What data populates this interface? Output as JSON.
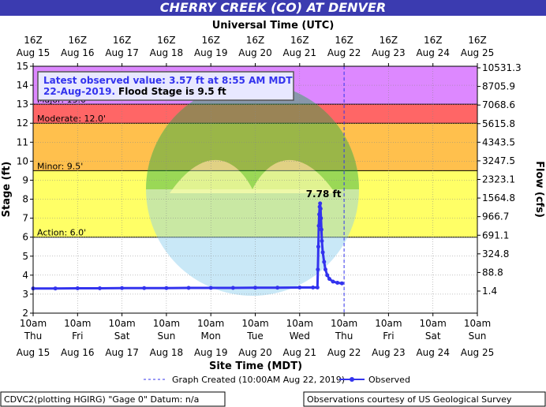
{
  "chart_data": {
    "type": "line",
    "title": "CHERRY CREEK (CO) AT DENVER",
    "top_axis_title": "Universal Time (UTC)",
    "xlabel": "Site Time (MDT)",
    "ylabel": "Stage (ft)",
    "y2label": "Flow (cfs)",
    "ylim": [
      2,
      15
    ],
    "y_ticks": [
      "2",
      "3",
      "4",
      "5",
      "6",
      "7",
      "8",
      "9",
      "10",
      "11",
      "12",
      "13",
      "14",
      "15"
    ],
    "y2_ticks": [
      "1.4",
      "88.8",
      "324.8",
      "691.1",
      "966.7",
      "1564.8",
      "2323.1",
      "3247.5",
      "4343.5",
      "5615.8",
      "7068.6",
      "8705.9",
      "10531.3"
    ],
    "x_days": 10,
    "top_ticks": [
      {
        "l1": "16Z",
        "l2": "Aug 15"
      },
      {
        "l1": "16Z",
        "l2": "Aug 16"
      },
      {
        "l1": "16Z",
        "l2": "Aug 17"
      },
      {
        "l1": "16Z",
        "l2": "Aug 18"
      },
      {
        "l1": "16Z",
        "l2": "Aug 19"
      },
      {
        "l1": "16Z",
        "l2": "Aug 20"
      },
      {
        "l1": "16Z",
        "l2": "Aug 21"
      },
      {
        "l1": "16Z",
        "l2": "Aug 22"
      },
      {
        "l1": "16Z",
        "l2": "Aug 23"
      },
      {
        "l1": "16Z",
        "l2": "Aug 24"
      },
      {
        "l1": "16Z",
        "l2": "Aug 25"
      }
    ],
    "bottom_ticks": [
      {
        "l1": "10am",
        "l2": "Thu",
        "l3": "Aug 15"
      },
      {
        "l1": "10am",
        "l2": "Fri",
        "l3": "Aug 16"
      },
      {
        "l1": "10am",
        "l2": "Sat",
        "l3": "Aug 17"
      },
      {
        "l1": "10am",
        "l2": "Sun",
        "l3": "Aug 18"
      },
      {
        "l1": "10am",
        "l2": "Mon",
        "l3": "Aug 19"
      },
      {
        "l1": "10am",
        "l2": "Tue",
        "l3": "Aug 20"
      },
      {
        "l1": "10am",
        "l2": "Wed",
        "l3": "Aug 21"
      },
      {
        "l1": "10am",
        "l2": "Thu",
        "l3": "Aug 22"
      },
      {
        "l1": "10am",
        "l2": "Fri",
        "l3": "Aug 23"
      },
      {
        "l1": "10am",
        "l2": "Sat",
        "l3": "Aug 24"
      },
      {
        "l1": "10am",
        "l2": "Sun",
        "l3": "Aug 25"
      }
    ],
    "flood_bands": [
      {
        "name": "Action",
        "label": "Action: 6.0'",
        "from": 6.0,
        "to": 9.5,
        "color": "#ffff66"
      },
      {
        "name": "Minor",
        "label": "Minor: 9.5'",
        "from": 9.5,
        "to": 12.0,
        "color": "#ffc04d"
      },
      {
        "name": "Moderate",
        "label": "Moderate: 12.0'",
        "from": 12.0,
        "to": 13.0,
        "color": "#ff6666"
      },
      {
        "name": "Major",
        "label": "Major: 13.0'",
        "from": 13.0,
        "to": 15.0,
        "color": "#dd88ff"
      }
    ],
    "graph_created_day": 7.0,
    "peak_label": "7.78 ft",
    "series": [
      {
        "name": "Observed",
        "color": "#3333ee",
        "points": [
          [
            0.0,
            3.3
          ],
          [
            0.5,
            3.3
          ],
          [
            1.0,
            3.31
          ],
          [
            1.5,
            3.31
          ],
          [
            2.0,
            3.32
          ],
          [
            2.5,
            3.32
          ],
          [
            3.0,
            3.32
          ],
          [
            3.5,
            3.33
          ],
          [
            4.0,
            3.33
          ],
          [
            4.5,
            3.33
          ],
          [
            5.0,
            3.34
          ],
          [
            5.5,
            3.34
          ],
          [
            6.0,
            3.35
          ],
          [
            6.3,
            3.35
          ],
          [
            6.4,
            3.35
          ],
          [
            6.41,
            4.3
          ],
          [
            6.42,
            5.5
          ],
          [
            6.43,
            6.6
          ],
          [
            6.44,
            7.2
          ],
          [
            6.45,
            7.6
          ],
          [
            6.46,
            7.78
          ],
          [
            6.47,
            7.5
          ],
          [
            6.48,
            7.0
          ],
          [
            6.49,
            6.4
          ],
          [
            6.5,
            5.8
          ],
          [
            6.52,
            5.2
          ],
          [
            6.55,
            4.7
          ],
          [
            6.58,
            4.3
          ],
          [
            6.62,
            4.0
          ],
          [
            6.67,
            3.8
          ],
          [
            6.75,
            3.66
          ],
          [
            6.85,
            3.6
          ],
          [
            6.95,
            3.57
          ]
        ]
      }
    ]
  },
  "notes": {
    "latest_line1": "Latest observed value: 3.57 ft at 8:55 AM MDT",
    "latest_date": "22-Aug-2019.",
    "flood_stage": "Flood Stage is 9.5 ft"
  },
  "legend": {
    "graph_created": "Graph Created (10:00AM Aug 22, 2019)",
    "observed": "Observed"
  },
  "footer": {
    "left": "CDVC2(plotting HGIRG) \"Gage 0\" Datum: n/a",
    "right": "Observations courtesy of US Geological Survey"
  },
  "colors": {
    "title_bar": "#3b3bb0",
    "seal_top": "#22aa44",
    "seal_bottom": "#88ccee"
  }
}
